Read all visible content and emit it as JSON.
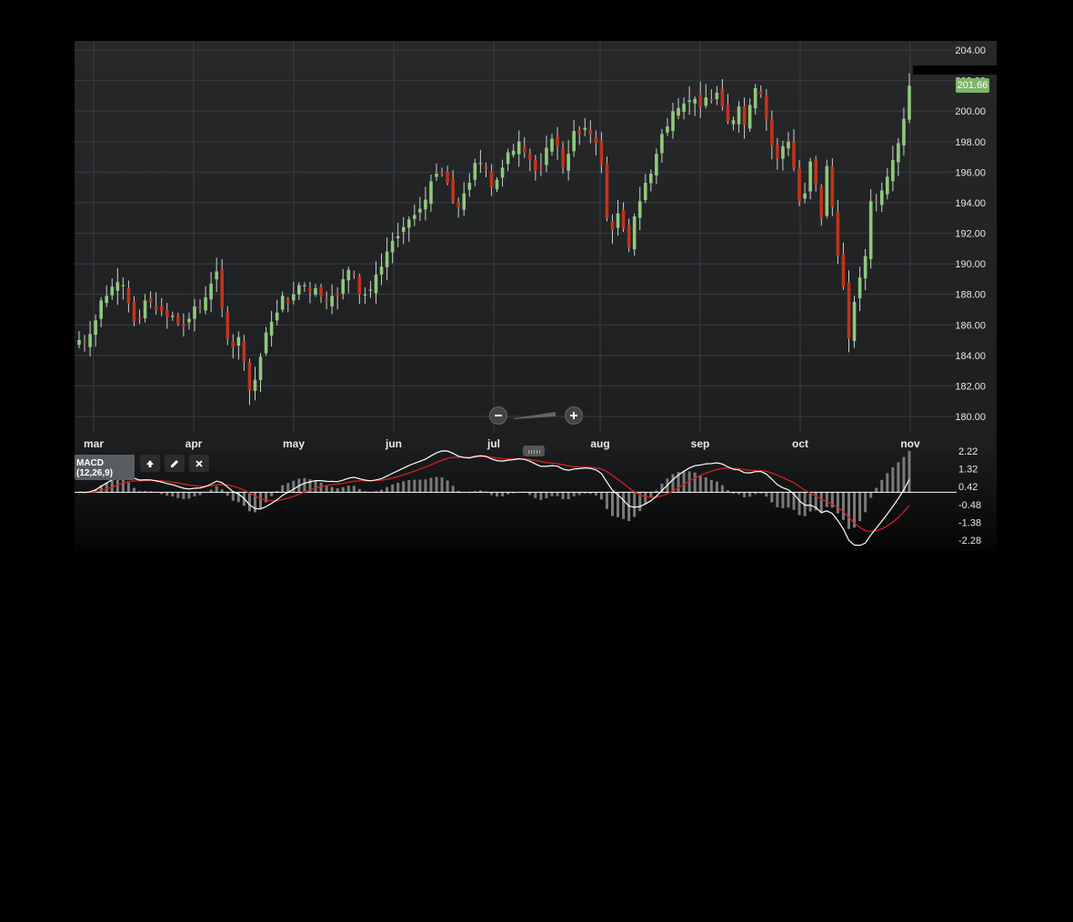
{
  "indicator": {
    "name": "MACD",
    "params": "(12,26,9)"
  },
  "current_price_label": "201.66",
  "colors": {
    "up": "#8fc97a",
    "down": "#c0331c",
    "signal_line": "#d21f1f",
    "macd_line": "#ffffff",
    "histogram": "#7a7a7a",
    "price_tag": "#7fb36a"
  },
  "icons": [
    "zoom-out-icon",
    "zoom-in-icon",
    "move-up-icon",
    "edit-pencil-icon",
    "close-icon",
    "resize-handle-icon"
  ],
  "chart_data": [
    {
      "type": "candlestick",
      "y_ticks": [
        "204.00",
        "202.00",
        "200.00",
        "198.00",
        "196.00",
        "194.00",
        "192.00",
        "190.00",
        "188.00",
        "186.00",
        "184.00",
        "182.00",
        "180.00"
      ],
      "ylim": [
        179,
        204.5
      ],
      "x_ticks": [
        "mar",
        "apr",
        "may",
        "jun",
        "jul",
        "aug",
        "sep",
        "oct",
        "nov"
      ],
      "grid": true,
      "last_price": 201.66,
      "closes": [
        185.0,
        184.8,
        185.4,
        186.3,
        187.6,
        187.9,
        188.5,
        188.8,
        188.6,
        187.4,
        186.2,
        186.4,
        187.6,
        187.5,
        187.0,
        186.9,
        186.5,
        186.6,
        186.1,
        185.9,
        186.4,
        187.2,
        187.1,
        187.8,
        188.7,
        189.5,
        187.1,
        185.1,
        184.5,
        185.2,
        183.6,
        181.7,
        182.4,
        183.9,
        185.5,
        186.2,
        186.8,
        187.9,
        187.4,
        188.0,
        188.6,
        188.6,
        188.2,
        188.4,
        187.9,
        187.5,
        187.9,
        187.9,
        189.0,
        189.6,
        189.3,
        188.0,
        188.0,
        188.3,
        189.3,
        189.8,
        190.8,
        191.5,
        191.8,
        192.4,
        192.9,
        193.2,
        193.6,
        194.2,
        195.4,
        195.9,
        196.0,
        195.3,
        194.1,
        193.7,
        194.6,
        195.3,
        196.6,
        196.6,
        196.2,
        195.0,
        195.5,
        196.3,
        197.3,
        197.4,
        198.0,
        197.3,
        196.8,
        196.1,
        196.2,
        197.6,
        198.2,
        197.7,
        196.3,
        197.2,
        198.7,
        198.5,
        198.9,
        198.5,
        197.9,
        196.5,
        193.0,
        192.2,
        193.3,
        192.3,
        191.1,
        193.1,
        194.1,
        195.3,
        195.9,
        197.2,
        198.5,
        199.0,
        200.0,
        200.2,
        200.5,
        200.7,
        200.8,
        200.3,
        200.9,
        200.7,
        201.2,
        200.3,
        199.3,
        199.4,
        200.3,
        199.1,
        200.4,
        201.5,
        201.1,
        199.5,
        197.7,
        196.9,
        197.7,
        198.0,
        196.3,
        194.1,
        194.6,
        196.7,
        195.2,
        193.0,
        196.4,
        193.7,
        190.5,
        188.5,
        185.1,
        187.5,
        189.1,
        190.5,
        194.1,
        194.1,
        194.8,
        195.7,
        196.8,
        197.9,
        199.5,
        201.66
      ]
    },
    {
      "type": "line",
      "title": "MACD",
      "y_ticks": [
        "2.22",
        "1.32",
        "0.42",
        "-0.48",
        "-1.38",
        "-2.28"
      ],
      "ylim": [
        -3.0,
        2.4
      ],
      "series": [
        {
          "name": "MACD",
          "role": "macd_line"
        },
        {
          "name": "Signal",
          "role": "signal_line"
        },
        {
          "name": "Histogram",
          "role": "histogram"
        }
      ],
      "zero_line": true,
      "grid": false
    }
  ]
}
